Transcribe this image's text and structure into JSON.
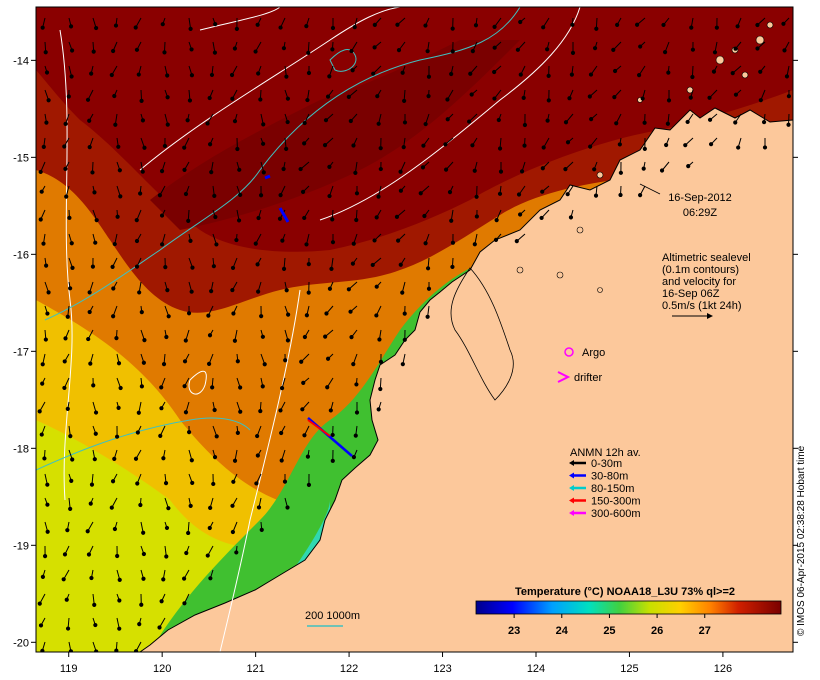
{
  "map": {
    "lon_range": [
      118.65,
      126.75
    ],
    "lat_range": [
      -20.1,
      -13.45
    ],
    "lon_ticks": [
      119,
      120,
      121,
      122,
      123,
      124,
      125,
      126
    ],
    "lat_ticks": [
      -14,
      -15,
      -16,
      -17,
      -18,
      -19,
      -20
    ],
    "land_color": "#fcc89b",
    "arrow_color": "#000000"
  },
  "timestamp": {
    "date": "16-Sep-2012",
    "time": "06:29Z"
  },
  "sealevel_note": {
    "lines": [
      "Altimetric sealevel",
      "(0.1m contours)",
      "and velocity for",
      "16-Sep 06Z",
      "0.5m/s (1kt 24h)"
    ]
  },
  "argo": {
    "label": "Argo",
    "color": "#ff00ff"
  },
  "drifter": {
    "label": "drifter",
    "color": "#ff00ff"
  },
  "anmn": {
    "title": "ANMN 12h av.",
    "items": [
      {
        "label": "0-30m",
        "color": "#000000"
      },
      {
        "label": "30-80m",
        "color": "#0000ff"
      },
      {
        "label": "80-150m",
        "color": "#00cccc"
      },
      {
        "label": "150-300m",
        "color": "#ff0000"
      },
      {
        "label": "300-600m",
        "color": "#ff00ff"
      }
    ]
  },
  "isobath": {
    "label": "200  1000m",
    "color": "#40c0c0"
  },
  "colorbar": {
    "title": "Temperature (°C) NOAA18_L3U 73% ql>=2",
    "ticks": [
      "23",
      "24",
      "25",
      "26",
      "27"
    ],
    "range": [
      22.2,
      28.6
    ]
  },
  "credit": "© IMOS 06-Apr-2015 02:38:28 Hobart time"
}
